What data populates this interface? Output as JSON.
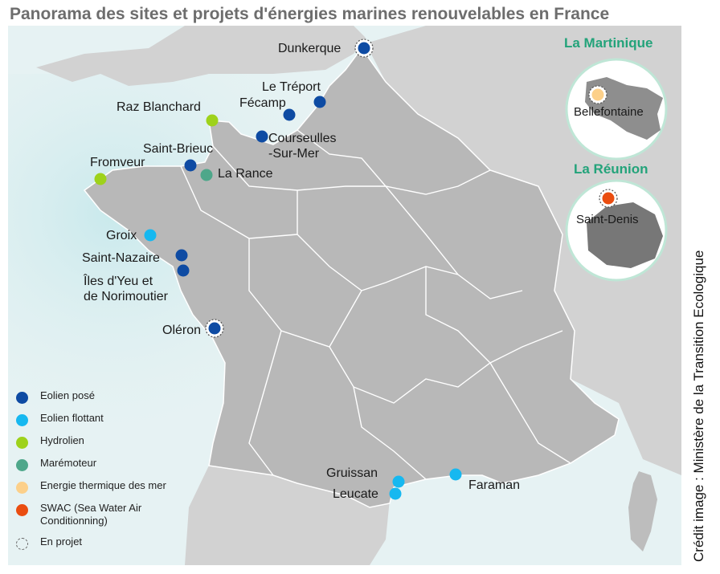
{
  "title": "Panorama des sites et projets d'énergies marines renouvelables en France",
  "credit": "Crédit image : Ministère de la Transition Ecologique",
  "colors": {
    "eolien_pose": "#0e4ba3",
    "eolien_flottant": "#16b8f0",
    "hydrolien": "#9ed21b",
    "maremoteur": "#4ea78a",
    "thermique": "#fcd08a",
    "swac": "#ea4d10",
    "inset_title": "#23a37a",
    "land": "#b8b8b8",
    "sea": "#e6f2f3"
  },
  "legend": [
    {
      "key": "eolien_pose",
      "label": "Eolien posé"
    },
    {
      "key": "eolien_flottant",
      "label": "Eolien flottant"
    },
    {
      "key": "hydrolien",
      "label": "Hydrolien"
    },
    {
      "key": "maremoteur",
      "label": "Marémoteur"
    },
    {
      "key": "thermique",
      "label": "Energie thermique des mer"
    },
    {
      "key": "swac",
      "label": "SWAC (Sea Water Air Conditionning)"
    },
    {
      "key": "projet",
      "label": "En projet"
    }
  ],
  "sites": [
    {
      "name": "Dunkerque",
      "type": "eolien_pose",
      "projet": true
    },
    {
      "name": "Le Tréport",
      "type": "eolien_pose",
      "projet": false
    },
    {
      "name": "Fécamp",
      "type": "eolien_pose",
      "projet": false
    },
    {
      "name": "Raz Blanchard",
      "type": "hydrolien",
      "projet": false
    },
    {
      "name": "Courseulles-Sur-Mer",
      "type": "eolien_pose",
      "projet": false
    },
    {
      "name": "Saint-Brieuc",
      "type": "eolien_pose",
      "projet": false
    },
    {
      "name": "La Rance",
      "type": "maremoteur",
      "projet": false
    },
    {
      "name": "Fromveur",
      "type": "hydrolien",
      "projet": false
    },
    {
      "name": "Groix",
      "type": "eolien_flottant",
      "projet": false
    },
    {
      "name": "Saint-Nazaire",
      "type": "eolien_pose",
      "projet": false
    },
    {
      "name": "Îles d'Yeu et de Norimoutier",
      "type": "eolien_pose",
      "projet": false
    },
    {
      "name": "Oléron",
      "type": "eolien_pose",
      "projet": true
    },
    {
      "name": "Gruissan",
      "type": "eolien_flottant",
      "projet": false
    },
    {
      "name": "Leucate",
      "type": "eolien_flottant",
      "projet": false
    },
    {
      "name": "Faraman",
      "type": "eolien_flottant",
      "projet": false
    }
  ],
  "labels": {
    "dunkerque": "Dunkerque",
    "le_treport": "Le Tréport",
    "fecamp": "Fécamp",
    "raz_blanchard": "Raz Blanchard",
    "courseulles_1": "Courseulles",
    "courseulles_2": "-Sur-Mer",
    "saint_brieuc": "Saint-Brieuc",
    "la_rance": "La Rance",
    "fromveur": "Fromveur",
    "groix": "Groix",
    "saint_nazaire": "Saint-Nazaire",
    "iles_yeu_1": "Îles d'Yeu et",
    "iles_yeu_2": "de Norimoutier",
    "oleron": "Oléron",
    "gruissan": "Gruissan",
    "leucate": "Leucate",
    "faraman": "Faraman"
  },
  "insets": [
    {
      "title": "La Martinique",
      "site": "Bellefontaine",
      "type": "thermique",
      "projet": true
    },
    {
      "title": "La Réunion",
      "site": "Saint-Denis",
      "type": "swac",
      "projet": true
    }
  ]
}
